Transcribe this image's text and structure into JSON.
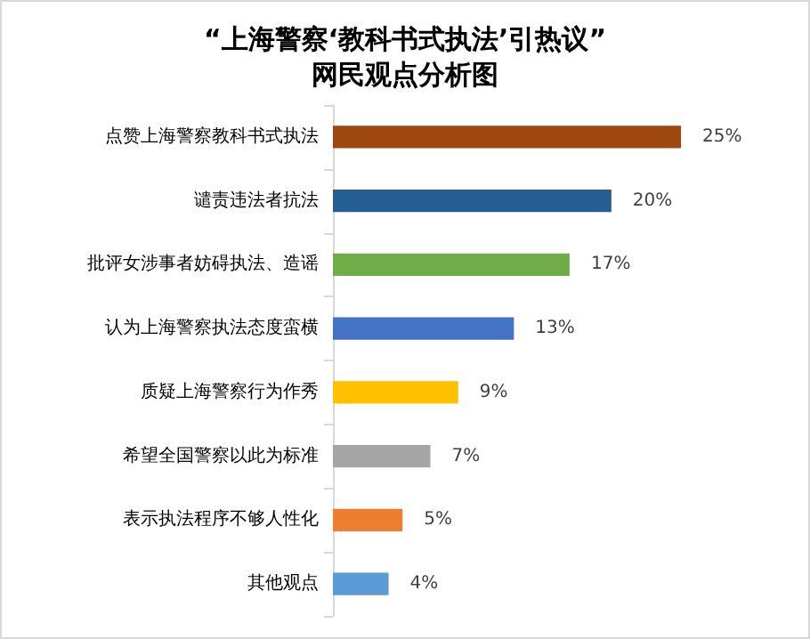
{
  "chart_data": {
    "type": "bar",
    "orientation": "horizontal",
    "title": "“上海警察‘教科书式执法’引热议”\n网民观点分析图",
    "categories": [
      "点赞上海警察教科书式执法",
      "谴责违法者抗法",
      "批评女涉事者妨碍执法、造谣",
      "认为上海警察执法态度蛮横",
      "质疑上海警察行为作秀",
      "希望全国警察以此为标准",
      "表示执法程序不够人性化",
      "其他观点"
    ],
    "values": [
      25,
      20,
      17,
      13,
      9,
      7,
      5,
      4
    ],
    "colors": [
      "#9e480e",
      "#255e91",
      "#70ad47",
      "#4472c4",
      "#ffc000",
      "#a5a5a5",
      "#ed7d31",
      "#5b9bd5"
    ],
    "value_labels": [
      "25%",
      "20%",
      "17%",
      "13%",
      "9%",
      "7%",
      "5%",
      "4%"
    ]
  }
}
